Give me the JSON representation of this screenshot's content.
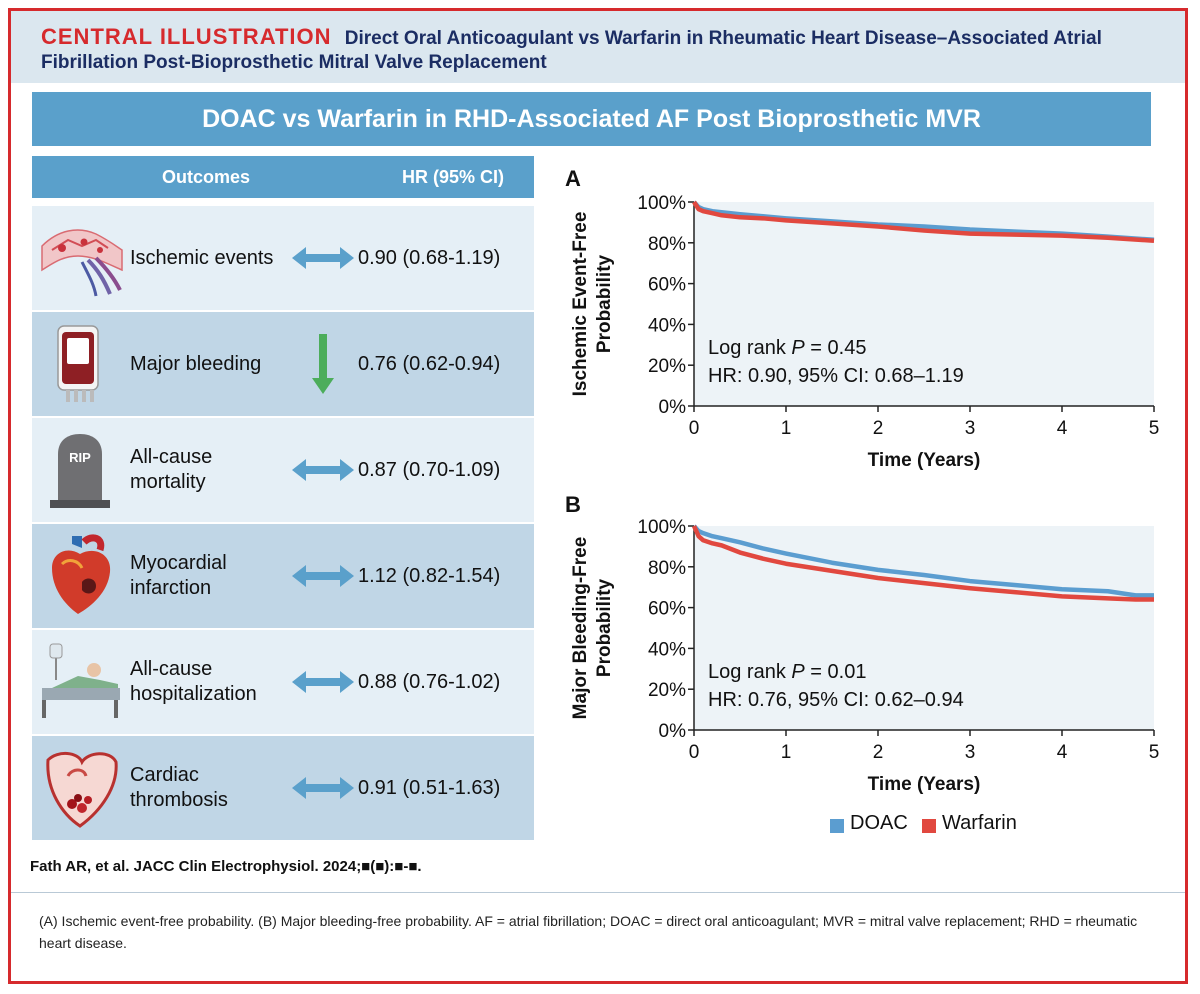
{
  "header": {
    "label": "CENTRAL ILLUSTRATION",
    "title": "Direct Oral Anticoagulant vs Warfarin in Rheumatic Heart Disease–Associated Atrial Fibrillation Post-Bioprosthetic Mitral Valve Replacement"
  },
  "banner": {
    "title": "DOAC vs Warfarin in RHD-Associated AF Post Bioprosthetic MVR"
  },
  "table": {
    "col_outcome": "Outcomes",
    "col_hr": "HR (95% CI)",
    "rows": [
      {
        "icon": "blood-vessel-icon",
        "outcome": "Ischemic events",
        "direction": "neutral",
        "hr": "0.90 (0.68-1.19)"
      },
      {
        "icon": "blood-bag-icon",
        "outcome": "Major bleeding",
        "direction": "down",
        "hr": "0.76 (0.62-0.94)"
      },
      {
        "icon": "tombstone-icon",
        "outcome": "All-cause mortality",
        "direction": "neutral",
        "hr": "0.87 (0.70-1.09)",
        "icon_text": "RIP"
      },
      {
        "icon": "heart-icon",
        "outcome": "Myocardial infarction",
        "direction": "neutral",
        "hr": "1.12 (0.82-1.54)"
      },
      {
        "icon": "hospital-bed-icon",
        "outcome": "All-cause hospitalization",
        "direction": "neutral",
        "hr": "0.88 (0.76-1.02)"
      },
      {
        "icon": "heart-thrombus-icon",
        "outcome": "Cardiac thrombosis",
        "direction": "neutral",
        "hr": "0.91 (0.51-1.63)"
      }
    ]
  },
  "colors": {
    "doac": "#5b9dd0",
    "warfarin": "#e1483f",
    "banner": "#5aa0cb",
    "accent": "#d62a2d",
    "arrow_neutral": "#5aa0cb",
    "arrow_down": "#4cad5b"
  },
  "chart_data": [
    {
      "panel": "A",
      "type": "line",
      "ylabel": "Ischemic Event-Free Probability",
      "xlabel": "Time (Years)",
      "xlim": [
        0,
        5
      ],
      "ylim": [
        0,
        100
      ],
      "x_ticks": [
        "0",
        "1",
        "2",
        "3",
        "4",
        "5"
      ],
      "y_ticks": [
        "0%",
        "20%",
        "40%",
        "60%",
        "80%",
        "100%"
      ],
      "annotation_prefix": "Log rank ",
      "annotation_p_symbol": "P",
      "annotation_p_value": " = 0.45",
      "annotation_hr": "HR: 0.90, 95% CI: 0.68–1.19",
      "x": [
        0,
        0.05,
        0.1,
        0.2,
        0.3,
        0.5,
        0.75,
        1.0,
        1.5,
        2.0,
        2.5,
        3.0,
        3.5,
        4.0,
        4.5,
        5.0
      ],
      "series": [
        {
          "name": "DOAC",
          "values": [
            100,
            97.5,
            96.5,
            95.5,
            95,
            94,
            93,
            92,
            90.5,
            89,
            88,
            86.5,
            85.5,
            84.5,
            83,
            81.5
          ]
        },
        {
          "name": "Warfarin",
          "values": [
            100,
            96.5,
            95.5,
            94.5,
            93.5,
            92.5,
            92,
            91,
            89.5,
            88,
            86,
            84.5,
            84,
            83.5,
            82.5,
            81
          ]
        }
      ]
    },
    {
      "panel": "B",
      "type": "line",
      "ylabel": "Major Bleeding-Free Probability",
      "xlabel": "Time (Years)",
      "xlim": [
        0,
        5
      ],
      "ylim": [
        0,
        100
      ],
      "x_ticks": [
        "0",
        "1",
        "2",
        "3",
        "4",
        "5"
      ],
      "y_ticks": [
        "0%",
        "20%",
        "40%",
        "60%",
        "80%",
        "100%"
      ],
      "annotation_prefix": "Log rank ",
      "annotation_p_symbol": "P",
      "annotation_p_value": " = 0.01",
      "annotation_hr": "HR: 0.76, 95% CI: 0.62–0.94",
      "x": [
        0,
        0.05,
        0.1,
        0.2,
        0.3,
        0.5,
        0.75,
        1.0,
        1.5,
        2.0,
        2.5,
        3.0,
        3.5,
        4.0,
        4.5,
        4.8,
        5.0
      ],
      "series": [
        {
          "name": "DOAC",
          "values": [
            100,
            97.5,
            96.5,
            95,
            94,
            92,
            89,
            86.5,
            82,
            78.5,
            76,
            73,
            71,
            69,
            68,
            66,
            66
          ]
        },
        {
          "name": "Warfarin",
          "values": [
            100,
            95,
            93,
            91.5,
            90.5,
            87,
            84,
            81.5,
            78,
            74.5,
            72,
            69.5,
            67.5,
            65.5,
            64.5,
            64,
            64
          ]
        }
      ]
    }
  ],
  "legend": {
    "doac": "DOAC",
    "warfarin": "Warfarin"
  },
  "citation": "Fath AR, et al. JACC Clin Electrophysiol. 2024;■(■):■-■.",
  "caption": "(A) Ischemic event-free probability. (B) Major bleeding-free probability. AF = atrial fibrillation; DOAC = direct oral anticoagulant; MVR = mitral valve replacement; RHD = rheumatic heart disease."
}
